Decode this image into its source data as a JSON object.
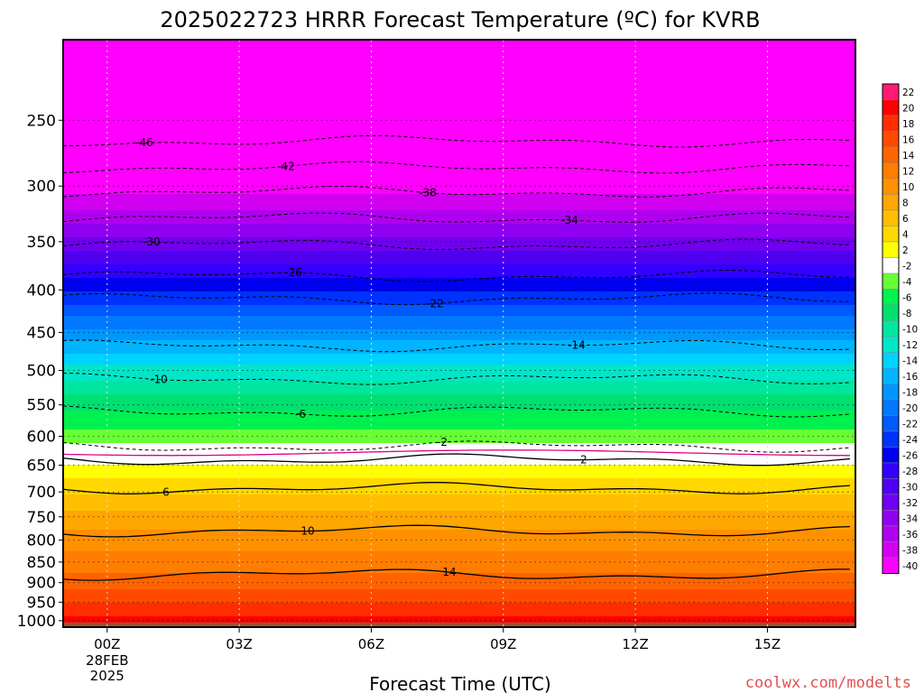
{
  "chart_data": {
    "type": "heatmap",
    "title": "2025022723 HRRR Forecast Temperature (ºC) for KVRB",
    "xlabel": "Forecast Time (UTC)",
    "ylabel": "",
    "x_ticks": [
      {
        "hour": 0,
        "label": "00Z",
        "sub": [
          "28FEB",
          "2025"
        ]
      },
      {
        "hour": 3,
        "label": "03Z"
      },
      {
        "hour": 6,
        "label": "06Z"
      },
      {
        "hour": 9,
        "label": "09Z"
      },
      {
        "hour": 12,
        "label": "12Z"
      },
      {
        "hour": 15,
        "label": "15Z"
      }
    ],
    "xlim": [
      -1,
      17
    ],
    "y_ticks": [
      250,
      300,
      350,
      400,
      450,
      500,
      550,
      600,
      650,
      700,
      750,
      800,
      850,
      900,
      950,
      1000
    ],
    "ylim": [
      1018,
      200
    ],
    "ground_color": "#a0522d",
    "colorbar": {
      "labels": [
        22,
        20,
        18,
        16,
        14,
        12,
        10,
        8,
        6,
        4,
        2,
        -2,
        -4,
        -6,
        -8,
        -10,
        -12,
        -14,
        -16,
        -18,
        -20,
        -22,
        -24,
        -26,
        -28,
        -30,
        -32,
        -34,
        -36,
        -38,
        -40
      ],
      "colors": [
        "#ff1a75",
        "#ff0000",
        "#ff2d00",
        "#ff4a00",
        "#ff6400",
        "#ff7d00",
        "#ff9100",
        "#ffa600",
        "#ffbf00",
        "#ffd800",
        "#ffff00",
        "#ffffff",
        "#66ff33",
        "#00f050",
        "#00e070",
        "#00e6a0",
        "#00e6c8",
        "#00d2ff",
        "#00b4ff",
        "#0096ff",
        "#0078ff",
        "#005aff",
        "#0032ff",
        "#0000f0",
        "#3200ff",
        "#5000f0",
        "#7000f0",
        "#9000f0",
        "#b000f0",
        "#d200f0",
        "#ff00ff"
      ]
    },
    "isotherms": [
      {
        "value": -46,
        "pressure": 265,
        "label": "-46"
      },
      {
        "value": -42,
        "pressure": 285,
        "label": "-42"
      },
      {
        "value": -38,
        "pressure": 305,
        "label": "-38"
      },
      {
        "value": -34,
        "pressure": 328,
        "label": "-34"
      },
      {
        "value": -30,
        "pressure": 353,
        "label": "-30"
      },
      {
        "value": -26,
        "pressure": 385,
        "label": "-26"
      },
      {
        "value": -22,
        "pressure": 410,
        "label": "-22"
      },
      {
        "value": -14,
        "pressure": 467,
        "label": "-14"
      },
      {
        "value": -10,
        "pressure": 512,
        "label": "-10"
      },
      {
        "value": -6,
        "pressure": 560,
        "label": "-6"
      },
      {
        "value": -2,
        "pressure": 617,
        "label": "-2"
      },
      {
        "value": 2,
        "pressure": 640,
        "label": "2"
      },
      {
        "value": 6,
        "pressure": 693,
        "label": "6"
      },
      {
        "value": 10,
        "pressure": 780,
        "label": "10"
      },
      {
        "value": 14,
        "pressure": 880,
        "label": "14"
      }
    ]
  },
  "footer": {
    "credit": "coolwx.com/modelts"
  }
}
